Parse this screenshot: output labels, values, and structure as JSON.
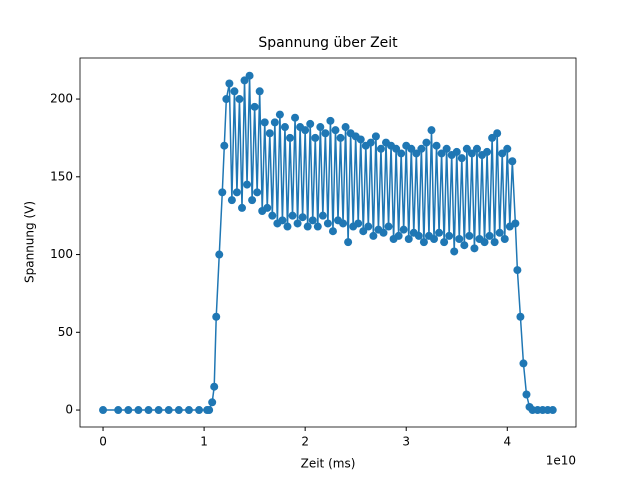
{
  "chart_data": {
    "type": "line",
    "title": "Spannung über Zeit",
    "x_label": "Zeit (ms)",
    "y_label": "Spannung (V)",
    "x_offset_label": "1e10",
    "color": "#1f77b4",
    "markers": true,
    "grid": false,
    "xlim": [
      -2280000000.0,
      46800000000.0
    ],
    "ylim": [
      -10.9,
      226.4
    ],
    "xticks": [
      {
        "value": 0,
        "label": "0"
      },
      {
        "value": 10000000000.0,
        "label": "1"
      },
      {
        "value": 20000000000.0,
        "label": "2"
      },
      {
        "value": 30000000000.0,
        "label": "3"
      },
      {
        "value": 40000000000.0,
        "label": "4"
      }
    ],
    "yticks": [
      0,
      50,
      100,
      150,
      200
    ],
    "x": [
      0,
      1500000000.0,
      2500000000.0,
      3500000000.0,
      4500000000.0,
      5500000000.0,
      6500000000.0,
      7500000000.0,
      8500000000.0,
      9500000000.0,
      10300000000.0,
      10500000000.0,
      10800000000.0,
      11000000000.0,
      11200000000.0,
      11500000000.0,
      11800000000.0,
      12000000000.0,
      12200000000.0,
      12500000000.0,
      12750000000.0,
      13000000000.0,
      13250000000.0,
      13500000000.0,
      13750000000.0,
      14000000000.0,
      14250000000.0,
      14500000000.0,
      14750000000.0,
      15000000000.0,
      15250000000.0,
      15500000000.0,
      15750000000.0,
      16000000000.0,
      16250000000.0,
      16500000000.0,
      16750000000.0,
      17000000000.0,
      17250000000.0,
      17500000000.0,
      17750000000.0,
      18000000000.0,
      18250000000.0,
      18500000000.0,
      18750000000.0,
      19000000000.0,
      19250000000.0,
      19500000000.0,
      19750000000.0,
      20000000000.0,
      20250000000.0,
      20500000000.0,
      20750000000.0,
      21000000000.0,
      21250000000.0,
      21500000000.0,
      21750000000.0,
      22000000000.0,
      22250000000.0,
      22500000000.0,
      22750000000.0,
      23000000000.0,
      23250000000.0,
      23500000000.0,
      23750000000.0,
      24000000000.0,
      24250000000.0,
      24500000000.0,
      24750000000.0,
      25000000000.0,
      25250000000.0,
      25500000000.0,
      25750000000.0,
      26000000000.0,
      26250000000.0,
      26500000000.0,
      26750000000.0,
      27000000000.0,
      27250000000.0,
      27500000000.0,
      27750000000.0,
      28000000000.0,
      28250000000.0,
      28500000000.0,
      28750000000.0,
      29000000000.0,
      29250000000.0,
      29500000000.0,
      29750000000.0,
      30000000000.0,
      30250000000.0,
      30500000000.0,
      30750000000.0,
      31000000000.0,
      31250000000.0,
      31500000000.0,
      31750000000.0,
      32000000000.0,
      32250000000.0,
      32500000000.0,
      32750000000.0,
      33000000000.0,
      33250000000.0,
      33500000000.0,
      33750000000.0,
      34000000000.0,
      34250000000.0,
      34500000000.0,
      34750000000.0,
      35000000000.0,
      35250000000.0,
      35500000000.0,
      35750000000.0,
      36000000000.0,
      36250000000.0,
      36500000000.0,
      36750000000.0,
      37000000000.0,
      37250000000.0,
      37500000000.0,
      37750000000.0,
      38000000000.0,
      38250000000.0,
      38500000000.0,
      38750000000.0,
      39000000000.0,
      39250000000.0,
      39500000000.0,
      39750000000.0,
      40000000000.0,
      40250000000.0,
      40500000000.0,
      40800000000.0,
      41000000000.0,
      41300000000.0,
      41600000000.0,
      41900000000.0,
      42200000000.0,
      42500000000.0,
      43000000000.0,
      43500000000.0,
      44000000000.0,
      44500000000.0
    ],
    "values": [
      0,
      0,
      0,
      0,
      0,
      0,
      0,
      0,
      0,
      0,
      0,
      0,
      5,
      15,
      60,
      100,
      140,
      170,
      200,
      210,
      135,
      205,
      140,
      200,
      130,
      212,
      145,
      215,
      135,
      195,
      140,
      205,
      128,
      185,
      130,
      178,
      125,
      185,
      120,
      190,
      122,
      182,
      118,
      175,
      125,
      188,
      120,
      182,
      124,
      180,
      118,
      184,
      122,
      175,
      118,
      182,
      125,
      178,
      120,
      186,
      115,
      180,
      122,
      175,
      120,
      182,
      108,
      178,
      118,
      176,
      120,
      174,
      115,
      170,
      118,
      172,
      112,
      176,
      116,
      168,
      114,
      172,
      118,
      170,
      110,
      168,
      112,
      165,
      116,
      170,
      110,
      168,
      114,
      165,
      112,
      168,
      108,
      172,
      112,
      180,
      110,
      170,
      114,
      165,
      108,
      168,
      112,
      164,
      102,
      166,
      110,
      162,
      106,
      168,
      112,
      165,
      104,
      168,
      110,
      164,
      108,
      166,
      112,
      175,
      108,
      178,
      114,
      165,
      110,
      168,
      118,
      160,
      120,
      90,
      60,
      30,
      10,
      2,
      0,
      0,
      0,
      0,
      0
    ]
  }
}
